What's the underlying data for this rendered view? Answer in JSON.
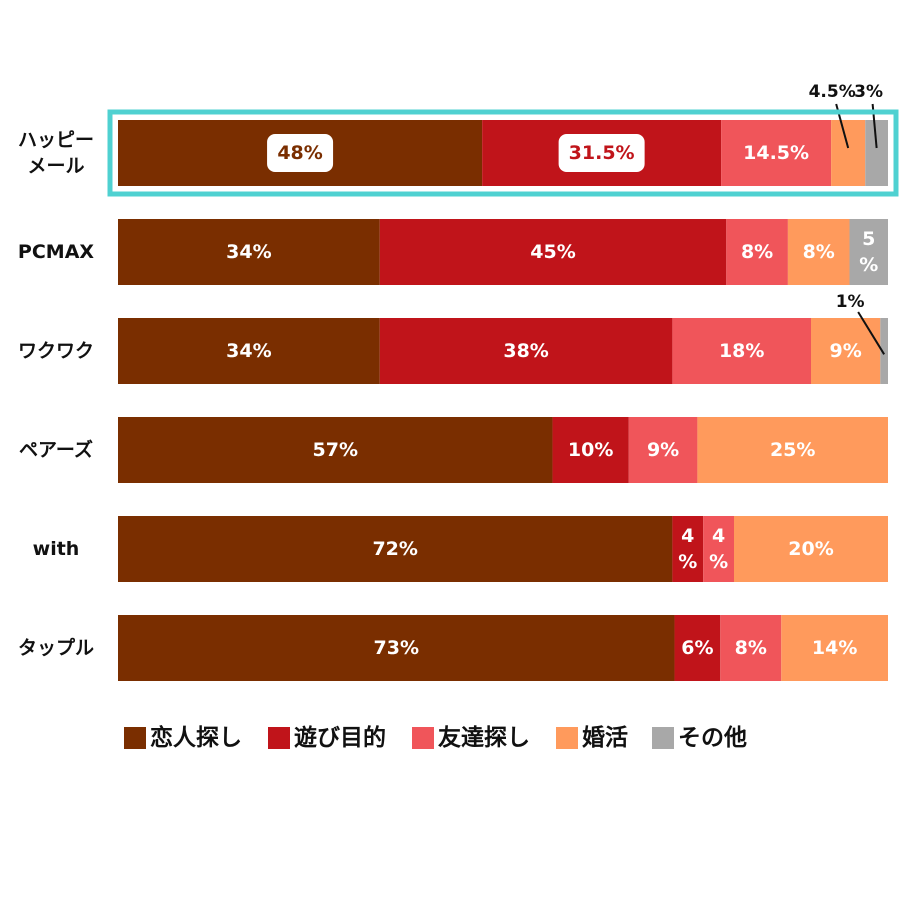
{
  "chart_data": {
    "type": "bar",
    "orientation": "horizontal",
    "stacked": true,
    "percent_stacked": true,
    "categories": [
      "ハッピーメール",
      "PCMAX",
      "ワクワク",
      "ペアーズ",
      "with",
      "タップル"
    ],
    "category_display": [
      [
        "ハッピー",
        "メール"
      ],
      [
        "PCMAX"
      ],
      [
        "ワクワク"
      ],
      [
        "ペアーズ"
      ],
      [
        "with"
      ],
      [
        "タップル"
      ]
    ],
    "highlighted_category": "ハッピーメール",
    "highlight_color": "#4fd1d1",
    "series": [
      {
        "name": "恋人探し",
        "color": "#7a2e00",
        "values": [
          48,
          34,
          34,
          57,
          72,
          73
        ],
        "labels": [
          "48%",
          "34%",
          "34%",
          "57%",
          "72%",
          "73%"
        ]
      },
      {
        "name": "遊び目的",
        "color": "#c0141a",
        "values": [
          31.5,
          45,
          38,
          10,
          4,
          6
        ],
        "labels": [
          "31.5%",
          "45%",
          "38%",
          "10%",
          "4%",
          "6%"
        ]
      },
      {
        "name": "友達探し",
        "color": "#f0555a",
        "values": [
          14.5,
          8,
          18,
          9,
          4,
          8
        ],
        "labels": [
          "14.5%",
          "8%",
          "18%",
          "9%",
          "4%",
          "8%"
        ]
      },
      {
        "name": "婚活",
        "color": "#ff9a5c",
        "values": [
          4.5,
          8,
          9,
          25,
          20,
          14
        ],
        "labels": [
          "4.5%",
          "8%",
          "9%",
          "25%",
          "20%",
          "14%"
        ]
      },
      {
        "name": "その他",
        "color": "#a8a8a8",
        "values": [
          3,
          5,
          1,
          0,
          0,
          0
        ],
        "labels": [
          "3%",
          "5%",
          "1%",
          "",
          "",
          ""
        ]
      }
    ],
    "legend": {
      "position": "bottom",
      "items": [
        "恋人探し",
        "遊び目的",
        "友達探し",
        "婚活",
        "その他"
      ]
    },
    "grid": false
  }
}
